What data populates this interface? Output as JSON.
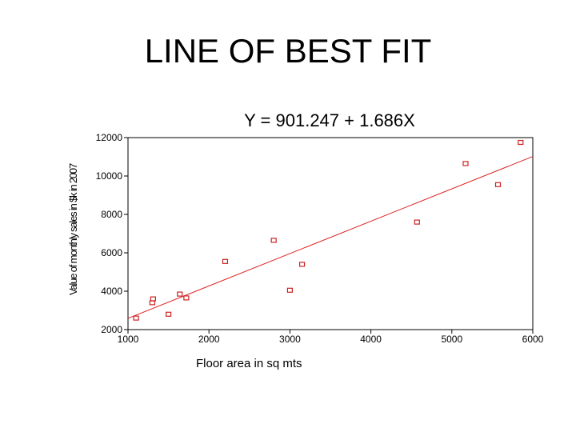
{
  "slide": {
    "title": "LINE OF BEST FIT"
  },
  "chart_data": {
    "type": "scatter",
    "equation": "Y = 901.247 + 1.686X",
    "xlabel": "Floor area in sq mts",
    "ylabel": "Value of monthly sales in $k in 2007",
    "xlim": [
      1000,
      6000
    ],
    "ylim": [
      2000,
      12000
    ],
    "xticks": [
      1000,
      2000,
      3000,
      4000,
      5000,
      6000
    ],
    "yticks": [
      2000,
      4000,
      6000,
      8000,
      10000,
      12000
    ],
    "grid": false,
    "points": [
      {
        "x": 1100,
        "y": 2600
      },
      {
        "x": 1300,
        "y": 3400
      },
      {
        "x": 1310,
        "y": 3600
      },
      {
        "x": 1500,
        "y": 2800
      },
      {
        "x": 1640,
        "y": 3850
      },
      {
        "x": 1720,
        "y": 3650
      },
      {
        "x": 2200,
        "y": 5550
      },
      {
        "x": 2800,
        "y": 6650
      },
      {
        "x": 3000,
        "y": 4050
      },
      {
        "x": 3150,
        "y": 5400
      },
      {
        "x": 4570,
        "y": 7600
      },
      {
        "x": 5170,
        "y": 10650
      },
      {
        "x": 5570,
        "y": 9550
      },
      {
        "x": 5850,
        "y": 11750
      }
    ],
    "fit": {
      "intercept": 901.247,
      "slope": 1.686
    },
    "colors": {
      "points": "#cc2222",
      "fit_line": "#dd2020",
      "axes": "#000000"
    }
  }
}
